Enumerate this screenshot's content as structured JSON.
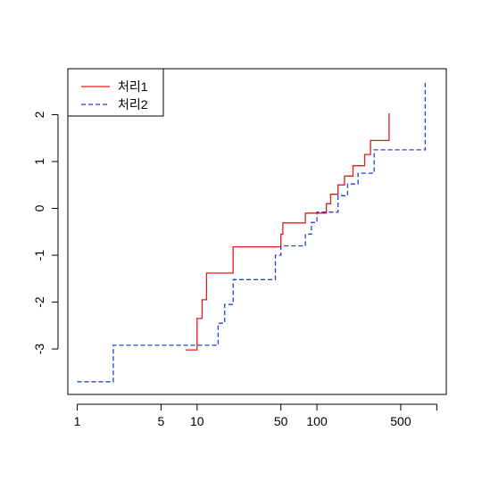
{
  "chart_data": {
    "type": "line",
    "step": true,
    "title": "",
    "xlabel": "",
    "ylabel": "",
    "xscale": "log",
    "xlim": [
      0.835,
      1200
    ],
    "ylim": [
      -3.97,
      2.98
    ],
    "xticks": [
      1,
      5,
      10,
      50,
      100,
      500,
      1000
    ],
    "xtick_labels": [
      "1",
      "5",
      "10",
      "50",
      "100",
      "500",
      ""
    ],
    "yticks": [
      -3,
      -2,
      -1,
      0,
      1,
      2
    ],
    "ytick_labels": [
      "-3",
      "-2",
      "-1",
      "0",
      "1",
      "2"
    ],
    "legend_position": "top-left",
    "grid": false,
    "series": [
      {
        "name": "처리1",
        "color": "#e41a1c",
        "dash": "solid",
        "x": [
          8,
          10,
          11,
          12,
          13,
          20,
          20,
          50,
          52,
          80,
          110,
          120,
          130,
          150,
          170,
          200,
          230,
          250,
          280,
          300,
          400
        ],
        "y": [
          -3.02,
          -2.35,
          -1.95,
          -1.38,
          -1.38,
          -0.82,
          -0.82,
          -0.55,
          -0.31,
          -0.1,
          -0.1,
          0.1,
          0.3,
          0.5,
          0.69,
          0.91,
          0.91,
          1.15,
          1.45,
          1.45,
          2.03
        ]
      },
      {
        "name": "처리2",
        "color": "#1f3fe0",
        "dash": "dashed",
        "x": [
          1,
          2,
          15,
          17,
          20,
          45,
          50,
          80,
          90,
          100,
          150,
          180,
          220,
          300,
          800
        ],
        "y": [
          -3.7,
          -2.92,
          -2.45,
          -2.05,
          -1.52,
          -1.0,
          -0.8,
          -0.55,
          -0.3,
          -0.08,
          0.27,
          0.52,
          0.75,
          1.25,
          2.7
        ]
      }
    ]
  }
}
